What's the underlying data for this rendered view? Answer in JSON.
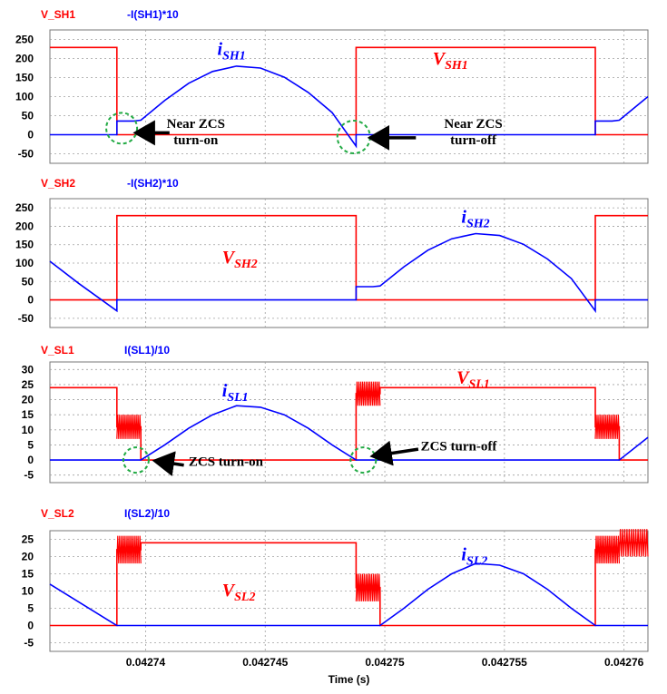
{
  "colors": {
    "voltage": "#ff0000",
    "current": "#0000ff",
    "grid": "#a0a0a0",
    "circle": "#22aa44"
  },
  "chart_data": [
    {
      "type": "line",
      "legend": [
        "V_SH1",
        "-I(SH1)*10"
      ],
      "yticks": [
        250,
        200,
        150,
        100,
        50,
        0,
        -50
      ],
      "ylim": [
        -75,
        275
      ],
      "xlim": [
        0.042736,
        0.042761
      ],
      "series": [
        {
          "name": "V_SH1",
          "color": "#ff0000",
          "x": [
            0.042736,
            0.0427388,
            0.0427388,
            0.0427488,
            0.0427488,
            0.0427588,
            0.0427588,
            0.042761
          ],
          "y": [
            229,
            229,
            0,
            0,
            229,
            229,
            0,
            0
          ]
        },
        {
          "name": "-I(SH1)*10",
          "color": "#0000ff",
          "x": [
            0.042736,
            0.0427388,
            0.0427388,
            0.0427395,
            0.0427398,
            0.0427408,
            0.0427418,
            0.0427428,
            0.0427438,
            0.0427448,
            0.0427458,
            0.0427468,
            0.0427478,
            0.0427488,
            0.0427488,
            0.0427588,
            0.0427588,
            0.0427595,
            0.0427598,
            0.042761
          ],
          "y": [
            0,
            0,
            36,
            36,
            38,
            90,
            135,
            166,
            180,
            175,
            151,
            111,
            58,
            -30,
            0,
            0,
            36,
            36,
            38,
            100
          ]
        }
      ],
      "labels": [
        {
          "text": "V",
          "sub": "SH1",
          "color": "#ff0000",
          "x": 0.042752,
          "y": 185,
          "size": 20
        },
        {
          "text": "i",
          "sub": "SH1",
          "color": "#0000ff",
          "x": 0.042743,
          "y": 210,
          "size": 20
        }
      ],
      "annotations": [
        {
          "lines": [
            "Near ZCS",
            "turn-on"
          ],
          "x": 0.0427421,
          "y": 3,
          "anchor": "middle"
        },
        {
          "lines": [
            "Near ZCS",
            "turn-off"
          ],
          "x": 0.0427537,
          "y": 3,
          "anchor": "middle"
        }
      ],
      "arrows": [
        {
          "from": [
            0.042741,
            5
          ],
          "to": [
            0.0427396,
            5
          ]
        },
        {
          "from": [
            0.0427513,
            -8
          ],
          "to": [
            0.0427494,
            -8
          ]
        }
      ],
      "circles": [
        {
          "x": 0.042739,
          "y": 17,
          "r": 17
        },
        {
          "x": 0.0427487,
          "y": -6,
          "r": 18
        }
      ]
    },
    {
      "type": "line",
      "legend": [
        "V_SH2",
        "-I(SH2)*10"
      ],
      "yticks": [
        250,
        200,
        150,
        100,
        50,
        0,
        -50
      ],
      "ylim": [
        -75,
        275
      ],
      "xlim": [
        0.042736,
        0.042761
      ],
      "series": [
        {
          "name": "V_SH2",
          "color": "#ff0000",
          "x": [
            0.042736,
            0.0427388,
            0.0427388,
            0.0427488,
            0.0427488,
            0.0427588,
            0.0427588,
            0.042761
          ],
          "y": [
            0,
            0,
            229,
            229,
            0,
            0,
            229,
            229
          ]
        },
        {
          "name": "-I(SH2)*10",
          "color": "#0000ff",
          "x": [
            0.042736,
            0.0427372,
            0.0427388,
            0.0427388,
            0.0427488,
            0.0427488,
            0.0427495,
            0.0427498,
            0.0427508,
            0.0427518,
            0.0427528,
            0.0427538,
            0.0427548,
            0.0427558,
            0.0427568,
            0.0427578,
            0.0427588,
            0.0427588,
            0.042761
          ],
          "y": [
            105,
            45,
            -30,
            0,
            0,
            36,
            36,
            38,
            90,
            135,
            166,
            180,
            175,
            151,
            111,
            58,
            -30,
            0,
            0
          ]
        }
      ],
      "labels": [
        {
          "text": "V",
          "sub": "SH2",
          "color": "#ff0000",
          "x": 0.0427432,
          "y": 100,
          "size": 20
        },
        {
          "text": "i",
          "sub": "SH2",
          "color": "#0000ff",
          "x": 0.0427532,
          "y": 210,
          "size": 20
        }
      ],
      "annotations": [],
      "arrows": [],
      "circles": []
    },
    {
      "type": "line",
      "legend": [
        "V_SL1",
        "I(SL1)/10"
      ],
      "yticks": [
        30,
        25,
        20,
        15,
        10,
        5,
        0,
        -5
      ],
      "ylim": [
        -7.5,
        32.5
      ],
      "xlim": [
        0.042736,
        0.042761
      ],
      "series": [
        {
          "name": "V_SL1",
          "color": "#ff0000",
          "x": [
            0.042736,
            0.0427388,
            0.0427388,
            0.0427398,
            0.0427398,
            0.0427488,
            0.0427488,
            0.0427498,
            0.0427498,
            0.0427588,
            0.0427588,
            0.0427598,
            0.0427598,
            0.042761
          ],
          "y": [
            24,
            24,
            11,
            11,
            0,
            0,
            22,
            22,
            24,
            24,
            11,
            11,
            0,
            0
          ]
        },
        {
          "name": "I(SL1)/10",
          "color": "#0000ff",
          "x": [
            0.042736,
            0.0427398,
            0.0427408,
            0.0427418,
            0.0427428,
            0.0427438,
            0.0427448,
            0.0427458,
            0.0427468,
            0.0427478,
            0.0427488,
            0.0427598,
            0.042761
          ],
          "y": [
            0,
            0,
            5,
            10.5,
            15,
            18,
            17.5,
            15,
            10.5,
            5,
            0,
            0,
            7.5
          ]
        }
      ],
      "labels": [
        {
          "text": "V",
          "sub": "SL1",
          "color": "#ff0000",
          "x": 0.042753,
          "y": 25.5,
          "size": 20
        },
        {
          "text": "i",
          "sub": "SL1",
          "color": "#0000ff",
          "x": 0.0427432,
          "y": 21,
          "size": 20
        }
      ],
      "annotations": [
        {
          "lines": [
            "ZCS turn-on"
          ],
          "x": 0.0427418,
          "y": -2,
          "anchor": "start"
        },
        {
          "lines": [
            "ZCS turn-off"
          ],
          "x": 0.0427515,
          "y": 3.2,
          "anchor": "start"
        }
      ],
      "arrows": [
        {
          "from": [
            0.0427416,
            -1.7
          ],
          "to": [
            0.0427404,
            -0.3
          ]
        },
        {
          "from": [
            0.0427514,
            3.6
          ],
          "to": [
            0.0427495,
            1.3
          ]
        }
      ],
      "circles": [
        {
          "x": 0.0427396,
          "y": 0,
          "r": 14
        },
        {
          "x": 0.0427491,
          "y": 0,
          "r": 14
        }
      ]
    },
    {
      "type": "line",
      "legend": [
        "V_SL2",
        "I(SL2)/10"
      ],
      "yticks": [
        25,
        20,
        15,
        10,
        5,
        0,
        -5
      ],
      "ylim": [
        -7.5,
        27.5
      ],
      "xlim": [
        0.042736,
        0.042761
      ],
      "xticks": [
        0.04274,
        0.042745,
        0.04275,
        0.042755,
        0.04276
      ],
      "xticklabels": [
        "0.04274",
        "0.042745",
        "0.04275",
        "0.042755",
        "0.04276"
      ],
      "xlabel": "Time (s)",
      "series": [
        {
          "name": "V_SL2",
          "color": "#ff0000",
          "x": [
            0.042736,
            0.0427388,
            0.0427388,
            0.0427398,
            0.0427398,
            0.0427488,
            0.0427488,
            0.0427498,
            0.0427498,
            0.0427588,
            0.0427588,
            0.0427598,
            0.0427598,
            0.042761
          ],
          "y": [
            0,
            0,
            22,
            22,
            24,
            24,
            11,
            11,
            0,
            0,
            22,
            22,
            24,
            24
          ]
        },
        {
          "name": "I(SL2)/10",
          "color": "#0000ff",
          "x": [
            0.042736,
            0.0427388,
            0.0427498,
            0.0427508,
            0.0427518,
            0.0427528,
            0.0427538,
            0.0427548,
            0.0427558,
            0.0427568,
            0.0427578,
            0.0427588,
            0.042761
          ],
          "y": [
            12,
            0,
            0,
            5,
            10.5,
            15,
            18,
            17.5,
            15,
            10.5,
            5,
            0,
            0
          ]
        }
      ],
      "labels": [
        {
          "text": "V",
          "sub": "SL2",
          "color": "#ff0000",
          "x": 0.0427432,
          "y": 8.5,
          "size": 20
        },
        {
          "text": "i",
          "sub": "SL2",
          "color": "#0000ff",
          "x": 0.0427532,
          "y": 19,
          "size": 20
        }
      ],
      "annotations": [],
      "arrows": [],
      "circles": []
    }
  ]
}
